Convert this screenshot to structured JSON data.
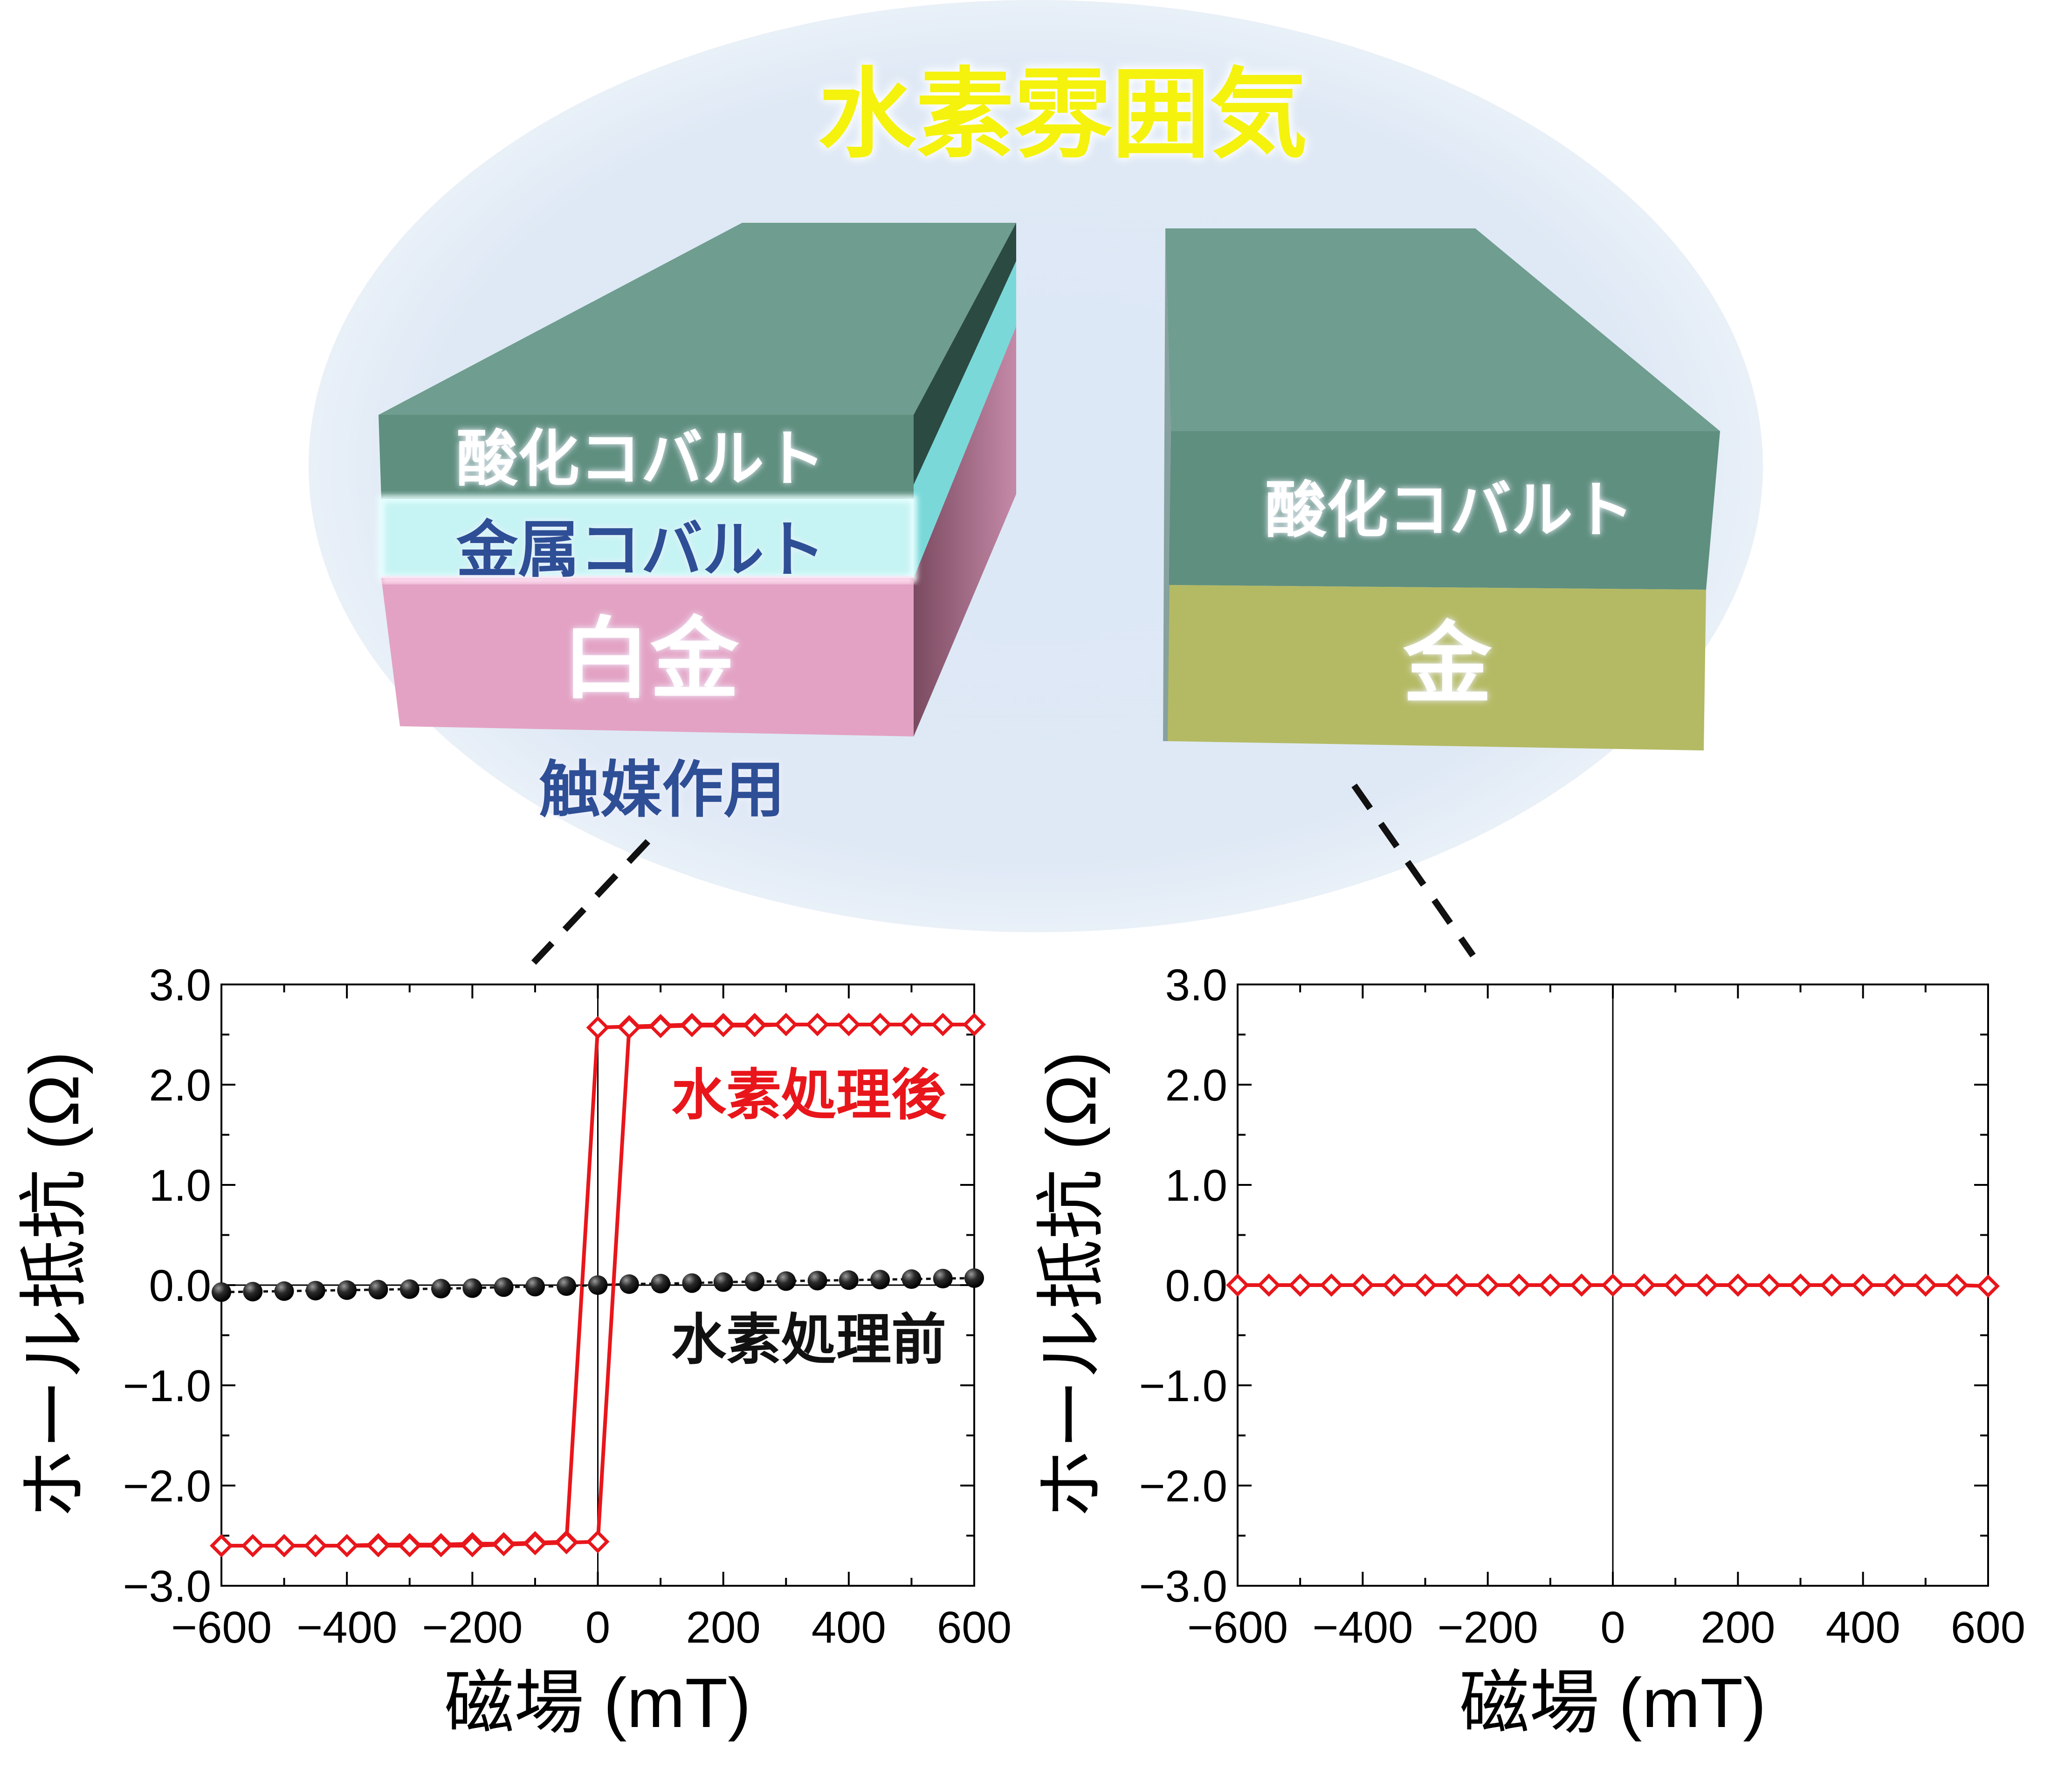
{
  "illustration": {
    "atmosphere_label": "水素雰囲気",
    "left_stack": {
      "top_layer_label": "酸化コバルト",
      "middle_layer_label": "金属コバルト",
      "bottom_layer_label": "白金",
      "caption": "触媒作用"
    },
    "right_stack": {
      "top_layer_label": "酸化コバルト",
      "bottom_layer_label": "金"
    },
    "colors": {
      "atmosphere": "#dfe9f5",
      "oxide": "#6e9e8f",
      "metal_cobalt": "#c6f3f3",
      "platinum": "#e59fc1",
      "gold": "#b4ba64",
      "atmosphere_text": "#f5f20a",
      "caption_text": "#2f4f96",
      "metal_text": "#2f4f96"
    }
  },
  "chart_data": [
    {
      "type": "line",
      "xlabel": "磁場 (mT)",
      "ylabel": "ホール抵抗 (Ω)",
      "xlim": [
        -600,
        600
      ],
      "ylim": [
        -3.0,
        3.0
      ],
      "xticks": [
        "−600",
        "−400",
        "−200",
        "0",
        "200",
        "400",
        "600"
      ],
      "yticks": [
        "3.0",
        "2.0",
        "1.0",
        "0.0",
        "−1.0",
        "−2.0",
        "−3.0"
      ],
      "zero_lines": true,
      "series": [
        {
          "name": "水素処理後",
          "color": "#e8161b",
          "marker": "diamond-open",
          "sweep_down": {
            "x": [
              600,
              550,
              500,
              450,
              400,
              350,
              300,
              250,
              200,
              150,
              100,
              50,
              0,
              -50,
              -100,
              -150,
              -200,
              -250,
              -300,
              -350,
              -400,
              -450,
              -500,
              -550,
              -600
            ],
            "y": [
              2.6,
              2.6,
              2.6,
              2.6,
              2.6,
              2.6,
              2.6,
              2.6,
              2.6,
              2.6,
              2.59,
              2.58,
              2.57,
              -2.56,
              -2.57,
              -2.58,
              -2.58,
              -2.59,
              -2.59,
              -2.59,
              -2.6,
              -2.6,
              -2.6,
              -2.6,
              -2.6
            ]
          },
          "sweep_up": {
            "x": [
              -600,
              -550,
              -500,
              -450,
              -400,
              -350,
              -300,
              -250,
              -200,
              -150,
              -100,
              -50,
              0,
              50,
              100,
              150,
              200,
              250,
              300,
              350,
              400,
              450,
              500,
              550,
              600
            ],
            "y": [
              -2.6,
              -2.6,
              -2.6,
              -2.6,
              -2.6,
              -2.6,
              -2.6,
              -2.6,
              -2.6,
              -2.59,
              -2.58,
              -2.57,
              -2.56,
              2.57,
              2.58,
              2.59,
              2.59,
              2.59,
              2.6,
              2.6,
              2.6,
              2.6,
              2.6,
              2.6,
              2.6
            ]
          }
        },
        {
          "name": "水素処理前",
          "color": "#111111",
          "marker": "sphere",
          "x": [
            -600,
            -550,
            -500,
            -450,
            -400,
            -350,
            -300,
            -250,
            -200,
            -150,
            -100,
            -50,
            0,
            50,
            100,
            150,
            200,
            250,
            300,
            350,
            400,
            450,
            500,
            550,
            600
          ],
          "y": [
            -0.07,
            -0.065,
            -0.06,
            -0.055,
            -0.05,
            -0.045,
            -0.04,
            -0.035,
            -0.03,
            -0.02,
            -0.015,
            -0.01,
            0.0,
            0.01,
            0.015,
            0.02,
            0.03,
            0.035,
            0.04,
            0.045,
            0.05,
            0.055,
            0.06,
            0.065,
            0.07
          ]
        }
      ]
    },
    {
      "type": "line",
      "xlabel": "磁場 (mT)",
      "ylabel": "ホール抵抗 (Ω)",
      "xlim": [
        -600,
        600
      ],
      "ylim": [
        -3.0,
        3.0
      ],
      "xticks": [
        "−600",
        "−400",
        "−200",
        "0",
        "200",
        "400",
        "600"
      ],
      "yticks": [
        "3.0",
        "2.0",
        "1.0",
        "0.0",
        "−1.0",
        "−2.0",
        "−3.0"
      ],
      "zero_lines": true,
      "series": [
        {
          "color": "#e8161b",
          "marker": "diamond-open",
          "x": [
            -600,
            -550,
            -500,
            -450,
            -400,
            -350,
            -300,
            -250,
            -200,
            -150,
            -100,
            -50,
            0,
            50,
            100,
            150,
            200,
            250,
            300,
            350,
            400,
            450,
            500,
            550,
            600
          ],
          "y": [
            0.0,
            0.0,
            0.0,
            0.0,
            0.0,
            0.0,
            0.0,
            0.0,
            0.0,
            0.0,
            0.0,
            0.0,
            0.0,
            0.0,
            0.0,
            0.0,
            0.0,
            0.0,
            0.0,
            0.0,
            0.0,
            0.0,
            0.0,
            0.0,
            -0.01
          ]
        }
      ]
    }
  ]
}
